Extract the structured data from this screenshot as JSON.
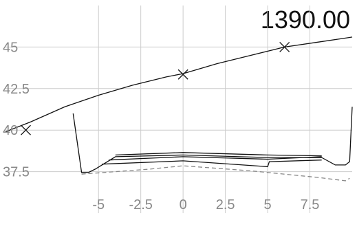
{
  "chart_data": {
    "type": "line",
    "title": "1390.00",
    "xlabel": "",
    "ylabel": "",
    "xlim": [
      -10.5,
      10
    ],
    "ylim": [
      35,
      47.5
    ],
    "xticks": [
      -5,
      -2.5,
      0,
      2.5,
      5,
      7.5
    ],
    "xtick_labels": [
      "-5",
      "-2.5",
      "0",
      "2.5",
      "5",
      "7.5"
    ],
    "yticks": [
      37.5,
      40,
      42.5,
      45
    ],
    "ytick_labels": [
      "37.5",
      "40",
      "42.5",
      "45"
    ],
    "grid": true,
    "series": [
      {
        "style": "solid",
        "x": [
          -10.5,
          -9,
          -7,
          -5,
          -3,
          -1,
          0,
          2,
          4,
          6,
          8,
          10
        ],
        "y": [
          39.9,
          40.5,
          41.4,
          42.1,
          42.7,
          43.2,
          43.4,
          44.0,
          44.5,
          45.0,
          45.3,
          45.6
        ]
      },
      {
        "style": "solid",
        "x": [
          -6.5,
          -6.0,
          -5.6,
          -5.2,
          -4.0,
          0,
          5,
          8.2,
          9.0,
          9.6,
          9.85,
          10.0
        ],
        "y": [
          41.0,
          37.45,
          37.45,
          37.65,
          38.4,
          38.5,
          38.35,
          38.35,
          37.9,
          37.9,
          38.1,
          41.4
        ]
      },
      {
        "style": "solid",
        "x": [
          -4.0,
          0,
          5,
          8.2
        ],
        "y": [
          38.5,
          38.65,
          38.5,
          38.45
        ]
      },
      {
        "style": "solid",
        "x": [
          -4.4,
          0,
          5,
          8.2
        ],
        "y": [
          38.2,
          38.4,
          38.25,
          38.4
        ]
      },
      {
        "style": "solid",
        "x": [
          -4.8,
          0,
          5,
          5.1,
          8.2
        ],
        "y": [
          37.95,
          38.15,
          37.8,
          38.1,
          38.2
        ]
      },
      {
        "style": "dashed",
        "x": [
          -6.0,
          -2,
          0,
          4,
          8,
          9.6,
          9.85
        ],
        "y": [
          37.35,
          37.65,
          37.85,
          37.55,
          37.15,
          36.95,
          37.1
        ]
      }
    ],
    "markers": [
      {
        "x": -9.3,
        "y": 40.0
      },
      {
        "x": 0,
        "y": 43.35
      },
      {
        "x": 6,
        "y": 45.0
      }
    ],
    "colors": {
      "line": "#111111",
      "dashed": "#888888",
      "grid": "#cccccc",
      "tick_label": "#888888"
    }
  }
}
